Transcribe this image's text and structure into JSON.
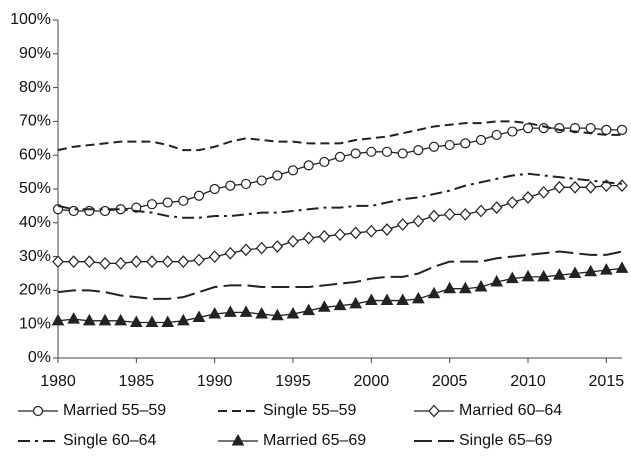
{
  "chart_data": {
    "type": "line",
    "x": [
      1980,
      1981,
      1982,
      1983,
      1984,
      1985,
      1986,
      1987,
      1988,
      1989,
      1990,
      1991,
      1992,
      1993,
      1994,
      1995,
      1996,
      1997,
      1998,
      1999,
      2000,
      2001,
      2002,
      2003,
      2004,
      2005,
      2006,
      2007,
      2008,
      2009,
      2010,
      2011,
      2012,
      2013,
      2014,
      2015,
      2016
    ],
    "xlim": [
      1980,
      2016
    ],
    "xticks": [
      1980,
      1985,
      1990,
      1995,
      2000,
      2005,
      2010,
      2015
    ],
    "ylim": [
      0,
      100
    ],
    "yticks": [
      {
        "value": 0,
        "label": "0%"
      },
      {
        "value": 10,
        "label": "10%"
      },
      {
        "value": 20,
        "label": "20%"
      },
      {
        "value": 30,
        "label": "30%"
      },
      {
        "value": 40,
        "label": "40%"
      },
      {
        "value": 50,
        "label": "50%"
      },
      {
        "value": 60,
        "label": "60%"
      },
      {
        "value": 70,
        "label": "70%"
      },
      {
        "value": 80,
        "label": "80%"
      },
      {
        "value": 90,
        "label": "90%"
      },
      {
        "value": 100,
        "label": "100%"
      }
    ],
    "legend": "bottom",
    "series": [
      {
        "name": "Married 55–59",
        "color": "#222222",
        "dash": "solid",
        "marker": "circle",
        "values": [
          44,
          43.5,
          43.5,
          43.5,
          44,
          44.5,
          45.5,
          46,
          46.5,
          48,
          50,
          51,
          51.5,
          52.5,
          54,
          55.5,
          57,
          58,
          59.5,
          60.5,
          61,
          61,
          60.5,
          61.5,
          62.5,
          63,
          63.5,
          64.5,
          66,
          67,
          68,
          68,
          68,
          68,
          68,
          67.5,
          67.5
        ]
      },
      {
        "name": "Single 55–59",
        "color": "#222222",
        "dash": "dashed",
        "marker": "none",
        "values": [
          61.5,
          62.5,
          63,
          63.5,
          64,
          64,
          64,
          63,
          61.5,
          61.5,
          62.5,
          64,
          65,
          64.5,
          64,
          64,
          63.5,
          63.5,
          63.5,
          64.5,
          65,
          65.5,
          66.5,
          67.5,
          68.5,
          69,
          69.5,
          69.5,
          70,
          70,
          69.5,
          68.5,
          67.5,
          67,
          66.5,
          66,
          66
        ]
      },
      {
        "name": "Married 60–64",
        "color": "#222222",
        "dash": "solid",
        "marker": "diamond",
        "values": [
          28.5,
          28.5,
          28.5,
          28,
          28,
          28.5,
          28.5,
          28.5,
          28.5,
          29,
          30,
          31,
          32,
          32.5,
          33,
          34.5,
          35.5,
          36,
          36.5,
          37,
          37.5,
          38,
          39.5,
          40.5,
          42,
          42.5,
          42.5,
          43.5,
          44.5,
          46,
          47.5,
          49,
          50.5,
          50.5,
          50.5,
          51,
          51
        ]
      },
      {
        "name": "Single 60–64",
        "color": "#222222",
        "dash": "dashdot",
        "marker": "none",
        "values": [
          45,
          44,
          44,
          44,
          44,
          43.5,
          43,
          42,
          41.5,
          41.5,
          42,
          42,
          42.5,
          43,
          43,
          43.5,
          44,
          44.5,
          44.5,
          45,
          45,
          46,
          47,
          47.5,
          48.5,
          49.5,
          51,
          52,
          53,
          54,
          54.5,
          54,
          53.5,
          53,
          52.5,
          52,
          51.5
        ]
      },
      {
        "name": "Married 65–69",
        "color": "#222222",
        "dash": "solid",
        "marker": "triangle",
        "values": [
          11,
          11.5,
          11,
          11,
          11,
          10.5,
          10.5,
          10.5,
          11,
          12,
          13,
          13.5,
          13.5,
          13,
          12.5,
          13,
          14,
          15,
          15.5,
          16,
          17,
          17,
          17,
          17.5,
          19,
          20.5,
          20.5,
          21,
          22.5,
          23.5,
          24,
          24,
          24.5,
          25,
          25.5,
          26,
          26.5
        ]
      },
      {
        "name": "Single 65–69",
        "color": "#222222",
        "dash": "longdash",
        "marker": "none",
        "values": [
          19.5,
          20,
          20,
          19.5,
          18.5,
          18,
          17.5,
          17.5,
          18,
          19.5,
          21,
          21.5,
          21.5,
          21,
          21,
          21,
          21,
          21.5,
          22,
          22.5,
          23.5,
          24,
          24,
          25,
          27,
          28.5,
          28.5,
          28.5,
          29.5,
          30,
          30.5,
          31,
          31.5,
          31,
          30.5,
          30.5,
          31.5
        ]
      }
    ]
  }
}
